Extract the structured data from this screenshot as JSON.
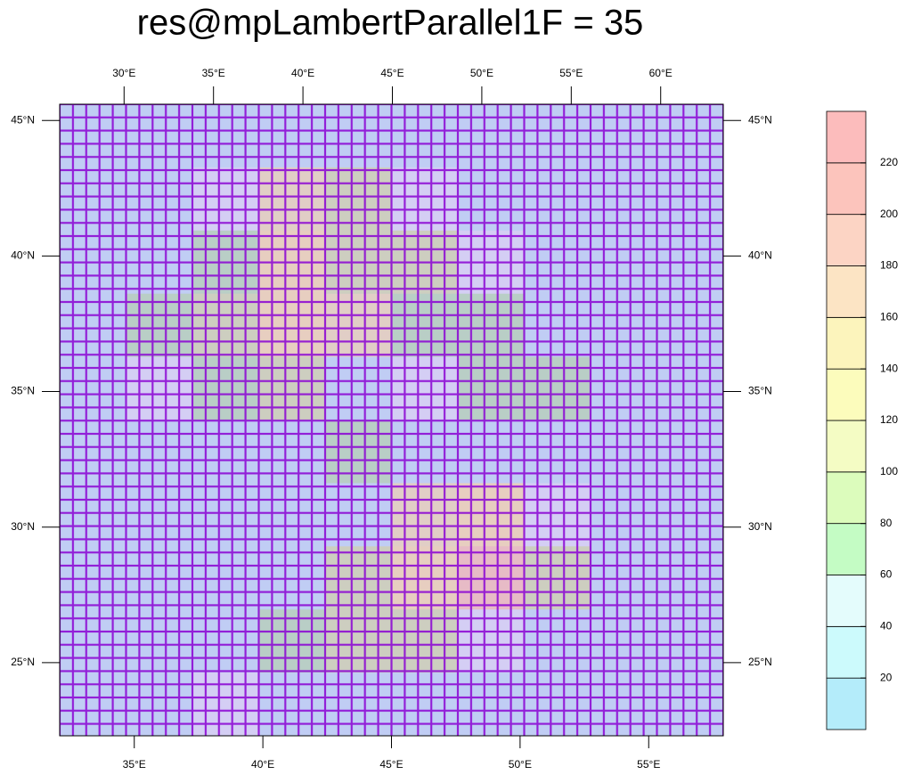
{
  "chart_data": {
    "type": "map",
    "title": "res@mpLambertParallel1F = 35",
    "top_axis": {
      "xlim": [
        26.4,
        63.5
      ],
      "xticks": [
        {
          "value": 30,
          "label": "30°E"
        },
        {
          "value": 35,
          "label": "35°E"
        },
        {
          "value": 40,
          "label": "40°E"
        },
        {
          "value": 45,
          "label": "45°E"
        },
        {
          "value": 50,
          "label": "50°E"
        },
        {
          "value": 55,
          "label": "55°E"
        },
        {
          "value": 60,
          "label": "60°E"
        }
      ]
    },
    "bottom_axis": {
      "xlim": [
        32.1,
        57.9
      ],
      "xticks": [
        {
          "value": 35,
          "label": "35°E"
        },
        {
          "value": 40,
          "label": "40°E"
        },
        {
          "value": 45,
          "label": "45°E"
        },
        {
          "value": 50,
          "label": "50°E"
        },
        {
          "value": 55,
          "label": "55°E"
        }
      ]
    },
    "left_axis": {
      "ylim": [
        22.3,
        45.6
      ],
      "yticks": [
        {
          "value": 45,
          "label": "45°N"
        },
        {
          "value": 40,
          "label": "40°N"
        },
        {
          "value": 35,
          "label": "35°N"
        },
        {
          "value": 30,
          "label": "30°N"
        },
        {
          "value": 25,
          "label": "25°N"
        }
      ]
    },
    "right_axis": {
      "ylim": [
        22.3,
        45.6
      ],
      "yticks": [
        {
          "value": 45,
          "label": "45°N"
        },
        {
          "value": 40,
          "label": "40°N"
        },
        {
          "value": 35,
          "label": "35°N"
        },
        {
          "value": 30,
          "label": "30°N"
        },
        {
          "value": 25,
          "label": "25°N"
        }
      ]
    },
    "field": [
      [
        20,
        20,
        20,
        20,
        20,
        20,
        20,
        20,
        20,
        20
      ],
      [
        20,
        20,
        40,
        100,
        80,
        40,
        20,
        20,
        20,
        20
      ],
      [
        20,
        20,
        60,
        120,
        80,
        80,
        40,
        20,
        20,
        20
      ],
      [
        20,
        60,
        80,
        120,
        100,
        60,
        60,
        20,
        20,
        20
      ],
      [
        20,
        40,
        60,
        80,
        20,
        40,
        60,
        60,
        20,
        20
      ],
      [
        20,
        20,
        20,
        20,
        60,
        20,
        20,
        20,
        20,
        20
      ],
      [
        20,
        20,
        20,
        20,
        20,
        100,
        120,
        40,
        20,
        20
      ],
      [
        20,
        20,
        20,
        20,
        80,
        120,
        160,
        80,
        20,
        20
      ],
      [
        20,
        20,
        20,
        60,
        80,
        80,
        40,
        20,
        20,
        20
      ],
      [
        20,
        20,
        40,
        20,
        20,
        20,
        20,
        20,
        20,
        20
      ]
    ],
    "levels": [
      20,
      40,
      60,
      80,
      100,
      120,
      140,
      160,
      180,
      200,
      220
    ],
    "colors": [
      "#b4ecfa",
      "#ccfafc",
      "#e4fcfc",
      "#c4fcc4",
      "#dcfcbc",
      "#f4fcc4",
      "#fcfcbc",
      "#fcf4bc",
      "#fce4c4",
      "#fcd4c4",
      "#fcc4bc",
      "#fcbcbc"
    ],
    "grid_color": "#8a00d4"
  }
}
